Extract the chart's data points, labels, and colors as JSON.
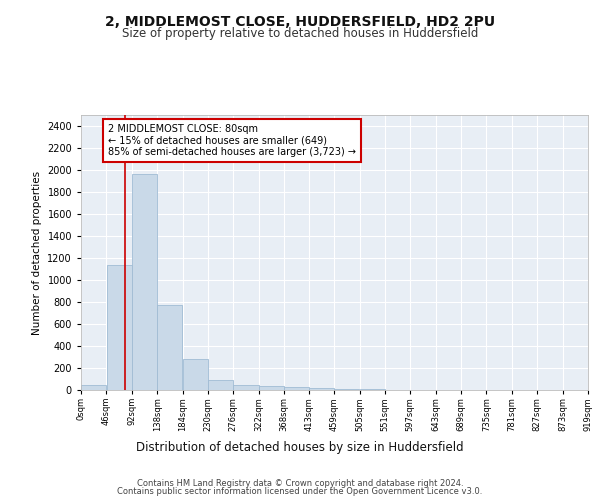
{
  "title1": "2, MIDDLEMOST CLOSE, HUDDERSFIELD, HD2 2PU",
  "title2": "Size of property relative to detached houses in Huddersfield",
  "xlabel": "Distribution of detached houses by size in Huddersfield",
  "ylabel": "Number of detached properties",
  "bar_color": "#c9d9e8",
  "bar_edge_color": "#a0bcd4",
  "background_color": "#e8eef5",
  "grid_color": "#ffffff",
  "annotation_box_color": "#cc0000",
  "annotation_line_color": "#cc0000",
  "annotation_text": "2 MIDDLEMOST CLOSE: 80sqm\n← 15% of detached houses are smaller (649)\n85% of semi-detached houses are larger (3,723) →",
  "footer1": "Contains HM Land Registry data © Crown copyright and database right 2024.",
  "footer2": "Contains public sector information licensed under the Open Government Licence v3.0.",
  "bin_edges": [
    0,
    46,
    92,
    138,
    184,
    230,
    276,
    322,
    368,
    413,
    459,
    505,
    551,
    597,
    643,
    689,
    735,
    781,
    827,
    873,
    919
  ],
  "bar_heights": [
    50,
    1140,
    1960,
    770,
    280,
    90,
    50,
    40,
    30,
    20,
    10,
    5,
    3,
    2,
    1,
    1,
    0,
    0,
    0,
    0
  ],
  "property_size": 80,
  "ylim": [
    0,
    2500
  ],
  "yticks": [
    0,
    200,
    400,
    600,
    800,
    1000,
    1200,
    1400,
    1600,
    1800,
    2000,
    2200,
    2400
  ],
  "tick_labels": [
    "0sqm",
    "46sqm",
    "92sqm",
    "138sqm",
    "184sqm",
    "230sqm",
    "276sqm",
    "322sqm",
    "368sqm",
    "413sqm",
    "459sqm",
    "505sqm",
    "551sqm",
    "597sqm",
    "643sqm",
    "689sqm",
    "735sqm",
    "781sqm",
    "827sqm",
    "873sqm",
    "919sqm"
  ]
}
